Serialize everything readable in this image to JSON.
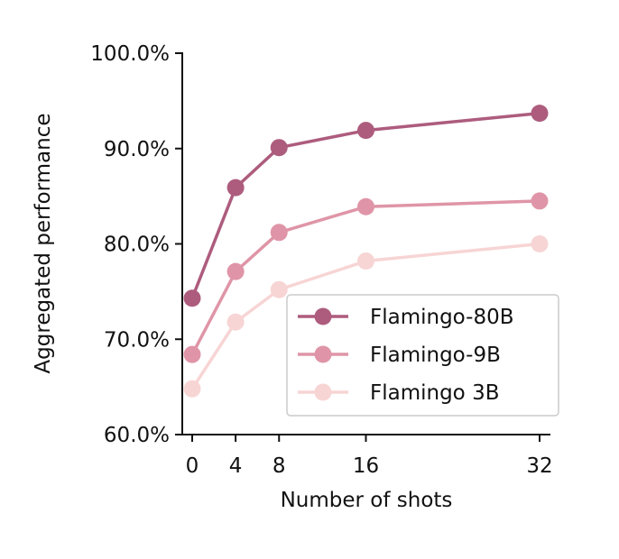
{
  "chart_data": {
    "type": "line",
    "x": [
      0,
      4,
      8,
      16,
      32
    ],
    "x_tick_labels": [
      "0",
      "4",
      "8",
      "16",
      "32"
    ],
    "xlabel": "Number of shots",
    "ylabel": "Aggregated performance",
    "ylim": [
      60,
      100
    ],
    "y_ticks": [
      60,
      70,
      80,
      90,
      100
    ],
    "y_tick_labels": [
      "60.0%",
      "70.0%",
      "80.0%",
      "90.0%",
      "100.0%"
    ],
    "grid": false,
    "legend_position": "lower-right",
    "series": [
      {
        "name": "Flamingo-80B",
        "color": "#ad5c7d",
        "values": [
          74.3,
          85.9,
          90.1,
          91.9,
          93.7
        ]
      },
      {
        "name": "Flamingo-9B",
        "color": "#df95a7",
        "values": [
          68.4,
          77.1,
          81.2,
          83.9,
          84.5
        ]
      },
      {
        "name": "Flamingo 3B",
        "color": "#f7d5d4",
        "values": [
          64.8,
          71.8,
          75.2,
          78.2,
          80.0
        ]
      }
    ]
  }
}
